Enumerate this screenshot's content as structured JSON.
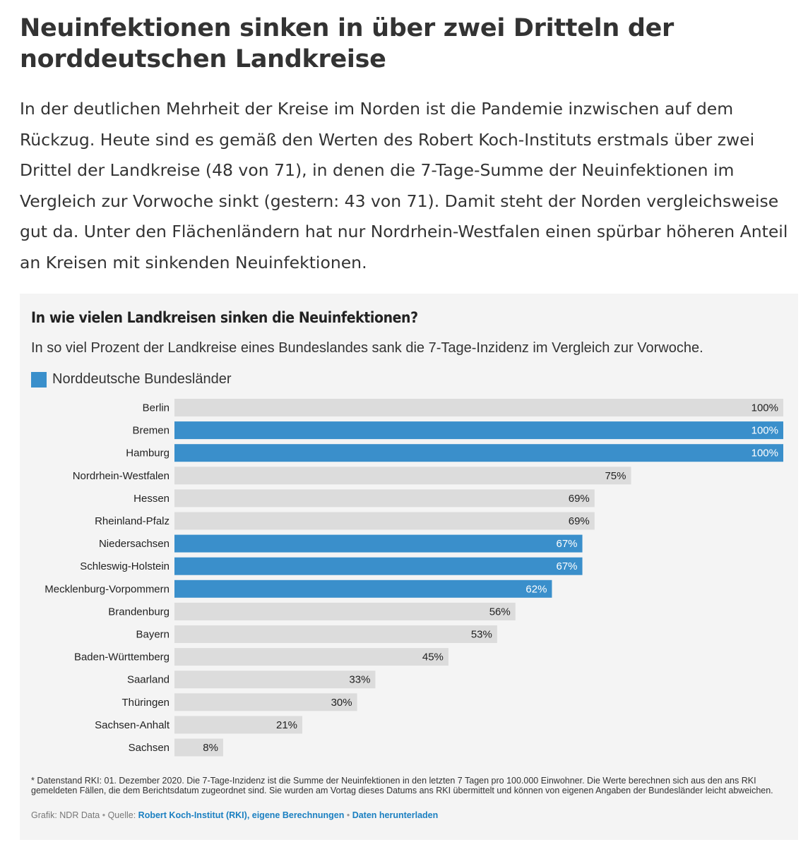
{
  "article": {
    "headline": "Neuinfektionen sinken in über zwei Dritteln der norddeutschen Landkreise",
    "lead": "In der deutlichen Mehrheit der Kreise im Norden ist die Pandemie inzwischen auf dem Rückzug. Heute sind es gemäß den Werten des Robert Koch-Instituts erstmals über zwei Drittel der Landkreise (48 von 71), in denen die 7-Tage-Summe der Neuinfektionen im Vergleich zur Vorwoche sinkt (gestern: 43 von 71). Damit steht der Norden vergleichsweise gut da. Unter den Flächenländern hat nur Nordrhein-Westfalen einen spürbar höheren Anteil an Kreisen mit sinkenden Neuinfektionen."
  },
  "chart_data": {
    "type": "bar",
    "orientation": "horizontal",
    "title": "In wie vielen Landkreisen sinken die Neuinfektionen?",
    "subtitle": "In so viel Prozent der Landkreise eines Bundeslandes sank die 7-Tage-Inzidenz im Vergleich zur Vorwoche.",
    "legend": [
      {
        "label": "Norddeutsche Bundesländer",
        "color": "#3a8fcb"
      }
    ],
    "legend_position": "top-left",
    "grid": false,
    "xlim": [
      0,
      100
    ],
    "unit": "%",
    "colors": {
      "highlight": "#3a8fcb",
      "default": "#dcdcdc",
      "label_on_highlight": "#ffffff",
      "label_default": "#222222"
    },
    "categories": [
      "Berlin",
      "Bremen",
      "Hamburg",
      "Nordrhein-Westfalen",
      "Hessen",
      "Rheinland-Pfalz",
      "Niedersachsen",
      "Schleswig-Holstein",
      "Mecklenburg-Vorpommern",
      "Brandenburg",
      "Bayern",
      "Baden-Württemberg",
      "Saarland",
      "Thüringen",
      "Sachsen-Anhalt",
      "Sachsen"
    ],
    "values": [
      100,
      100,
      100,
      75,
      69,
      69,
      67,
      67,
      62,
      56,
      53,
      45,
      33,
      30,
      21,
      8
    ],
    "highlighted": [
      false,
      true,
      true,
      false,
      false,
      false,
      true,
      true,
      true,
      false,
      false,
      false,
      false,
      false,
      false,
      false
    ]
  },
  "footer": {
    "note": "* Datenstand RKI: 01. Dezember 2020. Die 7-Tage-Inzidenz ist die Summe der Neuinfektionen in den letzten 7 Tagen pro 100.000 Einwohner. Die Werte berechnen sich aus den ans RKI gemeldeten Fällen, die dem Berichtsdatum zugeordnet sind. Sie wurden am Vortag dieses Datums ans RKI übermittelt und können von eigenen Angaben der Bundesländer leicht abweichen.",
    "credit_graphic": "Grafik: NDR Data",
    "separator": " • ",
    "source_prefix": "Quelle: ",
    "source_link": "Robert Koch-Institut (RKI), eigene Berechnungen",
    "download_link": "Daten herunterladen"
  }
}
